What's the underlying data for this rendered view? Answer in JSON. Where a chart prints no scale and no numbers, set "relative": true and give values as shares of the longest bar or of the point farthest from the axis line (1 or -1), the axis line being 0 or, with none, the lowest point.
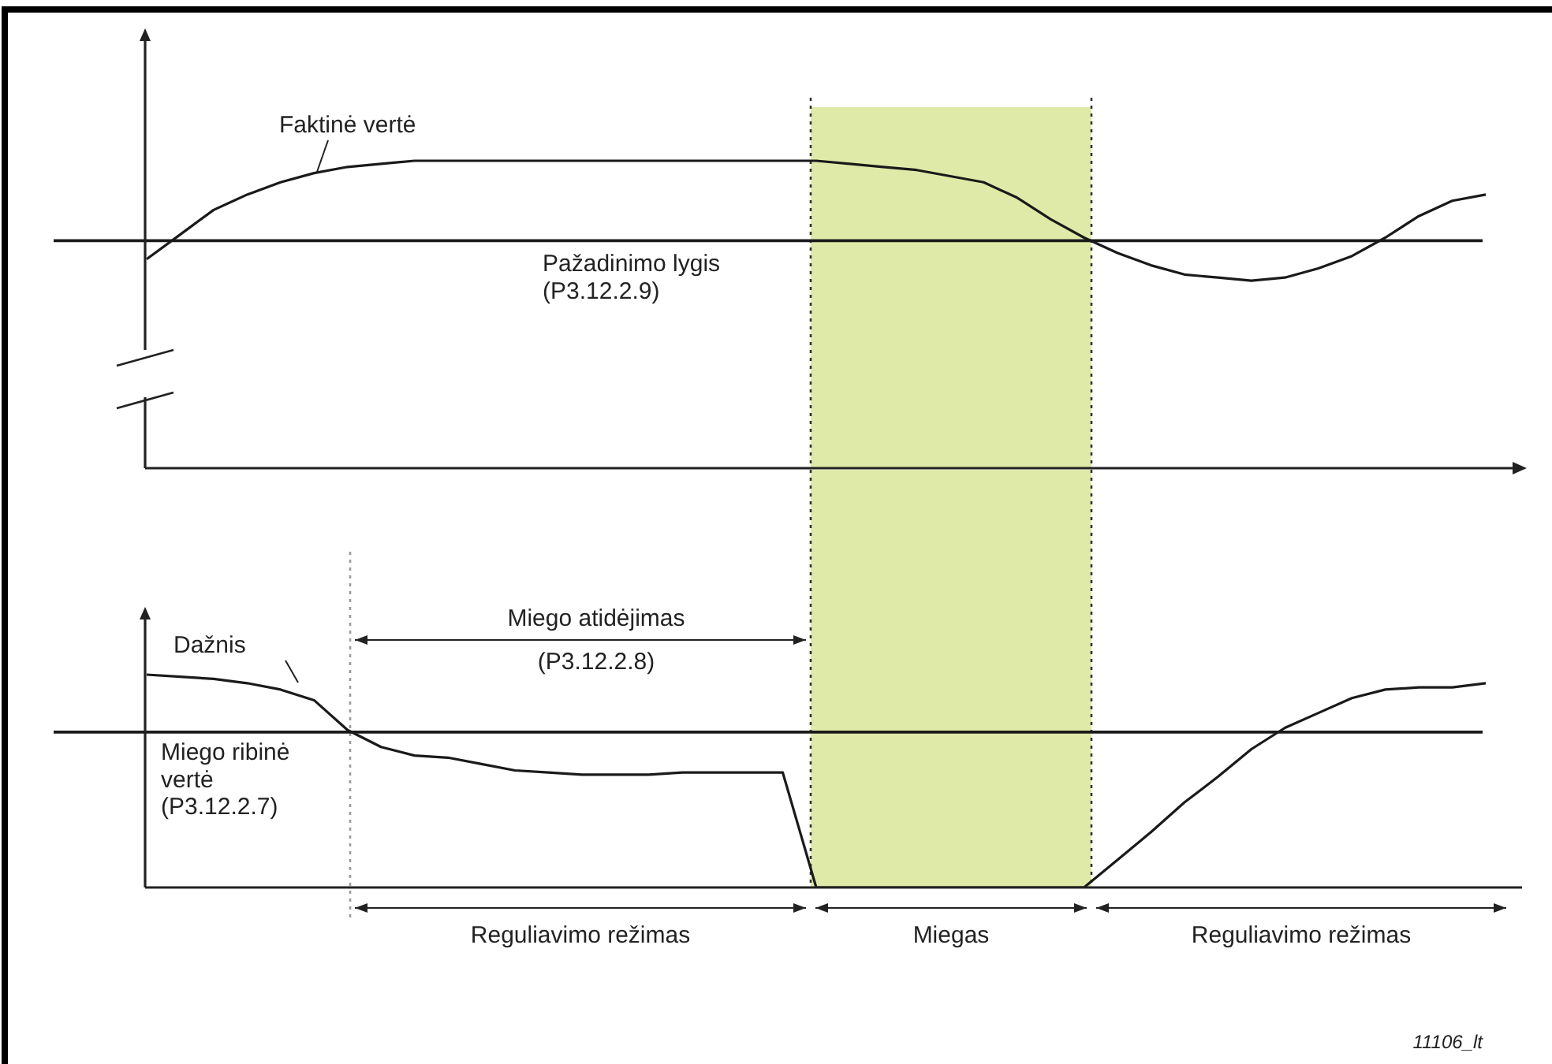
{
  "chart_data": [
    {
      "type": "line",
      "relative": true,
      "categories": [
        null,
        null,
        null,
        null,
        null,
        null,
        null,
        null,
        null,
        null,
        null,
        null,
        null,
        null,
        null,
        null,
        null,
        null,
        null,
        null,
        null,
        null,
        null,
        null,
        null,
        null,
        null,
        null,
        null,
        null,
        null,
        null,
        null,
        null,
        null,
        null,
        null,
        null,
        null,
        null,
        null
      ],
      "series": [
        {
          "name": "Faktinė vertė",
          "color": "#1a1a1a",
          "values": [
            0.68,
            0.76,
            0.84,
            0.89,
            0.93,
            0.96,
            0.98,
            0.99,
            1,
            1,
            1,
            1,
            1,
            1,
            1,
            1,
            1,
            1,
            1,
            1,
            1,
            0.99,
            0.98,
            0.97,
            0.95,
            0.93,
            0.88,
            0.81,
            0.75,
            0.7,
            0.66,
            0.63,
            0.62,
            0.61,
            0.62,
            0.65,
            0.69,
            0.75,
            0.82,
            0.87,
            0.89
          ]
        }
      ],
      "ref_lines": [
        {
          "axis": "y",
          "value": 0.74,
          "label": "Pažadinimo lygis\n(P3.12.2.9)",
          "color": "#1a1a1a"
        }
      ]
    },
    {
      "type": "line",
      "relative": true,
      "categories": [
        null,
        null,
        null,
        null,
        null,
        null,
        null,
        null,
        null,
        null,
        null,
        null,
        null,
        null,
        null,
        null,
        null,
        null,
        null,
        null,
        null,
        null,
        null,
        null,
        null,
        null,
        null,
        null,
        null,
        null,
        null,
        null,
        null,
        null,
        null,
        null,
        null,
        null,
        null,
        null,
        null
      ],
      "series": [
        {
          "name": "Dažnis",
          "color": "#1a1a1a",
          "values": [
            1,
            0.99,
            0.98,
            0.96,
            0.93,
            0.88,
            0.74,
            0.66,
            0.62,
            0.61,
            0.58,
            0.55,
            0.54,
            0.53,
            0.53,
            0.53,
            0.54,
            0.54,
            0.54,
            0.54,
            0,
            0,
            0,
            0,
            0,
            0,
            0,
            0,
            0,
            0.13,
            0.26,
            0.4,
            0.52,
            0.65,
            0.75,
            0.82,
            0.89,
            0.93,
            0.94,
            0.94,
            0.96
          ]
        }
      ],
      "ref_lines": [
        {
          "axis": "y",
          "value": 0.73,
          "label": "Miego ribinė\nvertė\n(P3.12.2.7)",
          "color": "#1a1a1a"
        }
      ],
      "annotations": [
        "Miego atidėjimas\n(P3.12.2.8)",
        "Reguliavimo režimas",
        "Miegas",
        "Reguliavimo režimas",
        "11106_lt"
      ]
    }
  ]
}
